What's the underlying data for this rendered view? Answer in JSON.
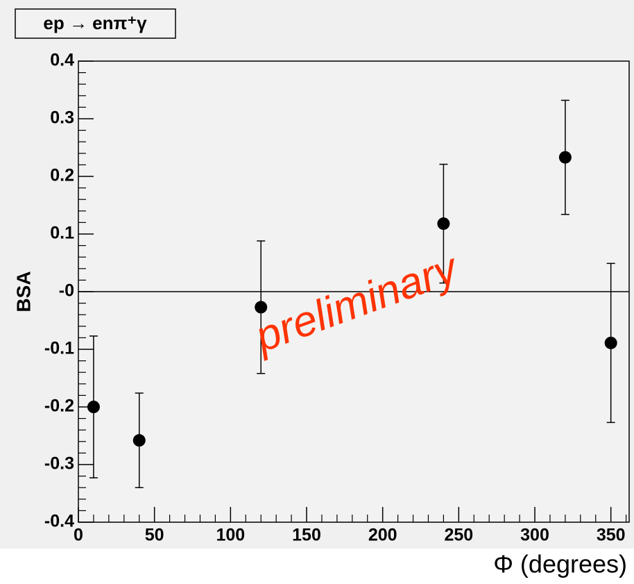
{
  "chart_data": {
    "type": "scatter",
    "title": "ep → enπ⁺γ",
    "x_label": "Φ (degrees)",
    "y_label": "BSA",
    "annotation": "preliminary",
    "x": [
      10,
      40,
      120,
      240,
      320,
      350
    ],
    "values": [
      -0.2,
      -0.258,
      -0.027,
      0.118,
      0.233,
      -0.089
    ],
    "errors": [
      0.123,
      0.082,
      0.115,
      0.103,
      0.099,
      0.138
    ],
    "color": "#000000",
    "xlim": [
      0,
      362
    ],
    "xticks": [
      0,
      50,
      100,
      150,
      200,
      250,
      300,
      350
    ],
    "ylim": [
      -0.4,
      0.4
    ],
    "yticks": [
      -0.4,
      -0.3,
      -0.2,
      -0.1,
      {
        "value": 0,
        "label": "-0"
      },
      0.1,
      0.2,
      0.3,
      0.4
    ]
  }
}
